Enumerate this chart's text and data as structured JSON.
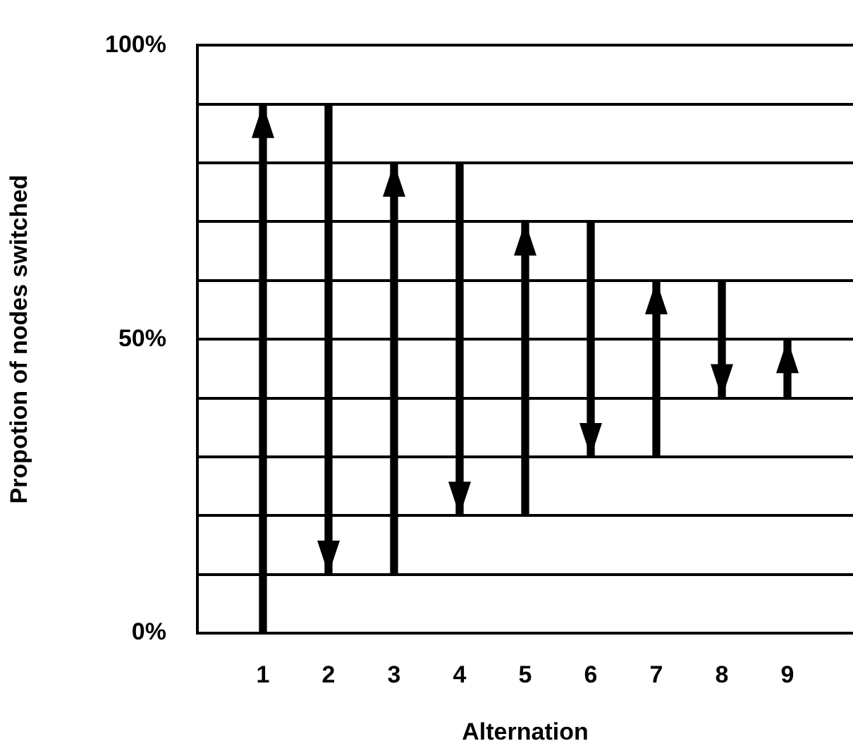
{
  "chart_data": {
    "type": "bar",
    "xlabel": "Alternation",
    "ylabel": "Propotion of nodes switched",
    "x": [
      1,
      2,
      3,
      4,
      5,
      6,
      7,
      8,
      9
    ],
    "xlim": [
      0,
      10
    ],
    "xticks": [
      1,
      2,
      3,
      4,
      5,
      6,
      7,
      8,
      9
    ],
    "base": [
      0,
      90,
      10,
      80,
      20,
      70,
      30,
      60,
      40
    ],
    "values": [
      90,
      -80,
      70,
      -60,
      50,
      -40,
      30,
      -20,
      10
    ],
    "color": "#000000",
    "ylim": [
      0,
      100
    ],
    "yticks": [
      {
        "value": 0,
        "label": "0%"
      },
      {
        "value": 10,
        "label": null
      },
      {
        "value": 20,
        "label": null
      },
      {
        "value": 30,
        "label": null
      },
      {
        "value": 40,
        "label": null
      },
      {
        "value": 50,
        "label": "50%"
      },
      {
        "value": 60,
        "label": null
      },
      {
        "value": 70,
        "label": null
      },
      {
        "value": 80,
        "label": null
      },
      {
        "value": 90,
        "label": null
      },
      {
        "value": 100,
        "label": "100%"
      }
    ],
    "grid": "y",
    "legend": false
  }
}
